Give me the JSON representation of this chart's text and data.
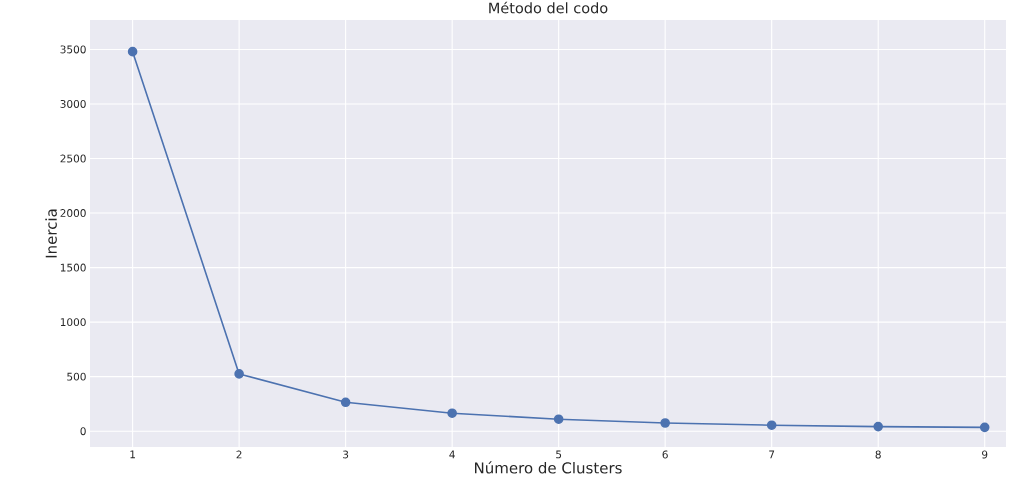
{
  "chart_data": {
    "type": "line",
    "title": "Método del codo",
    "xlabel": "Número de Clusters",
    "ylabel": "Inercia",
    "x": [
      1,
      2,
      3,
      4,
      5,
      6,
      7,
      8,
      9
    ],
    "series": [
      {
        "color": "#4c72b0",
        "values": [
          3480,
          525,
          265,
          165,
          110,
          75,
          55,
          42,
          35
        ]
      }
    ],
    "xlim": [
      0.6,
      9.2
    ],
    "ylim": [
      -145,
      3770
    ],
    "xticks": [
      1,
      2,
      3,
      4,
      5,
      6,
      7,
      8,
      9
    ],
    "yticks": [
      0,
      500,
      1000,
      1500,
      2000,
      2500,
      3000,
      3500
    ],
    "grid": true,
    "marker": "circle",
    "line_style": "solid"
  }
}
